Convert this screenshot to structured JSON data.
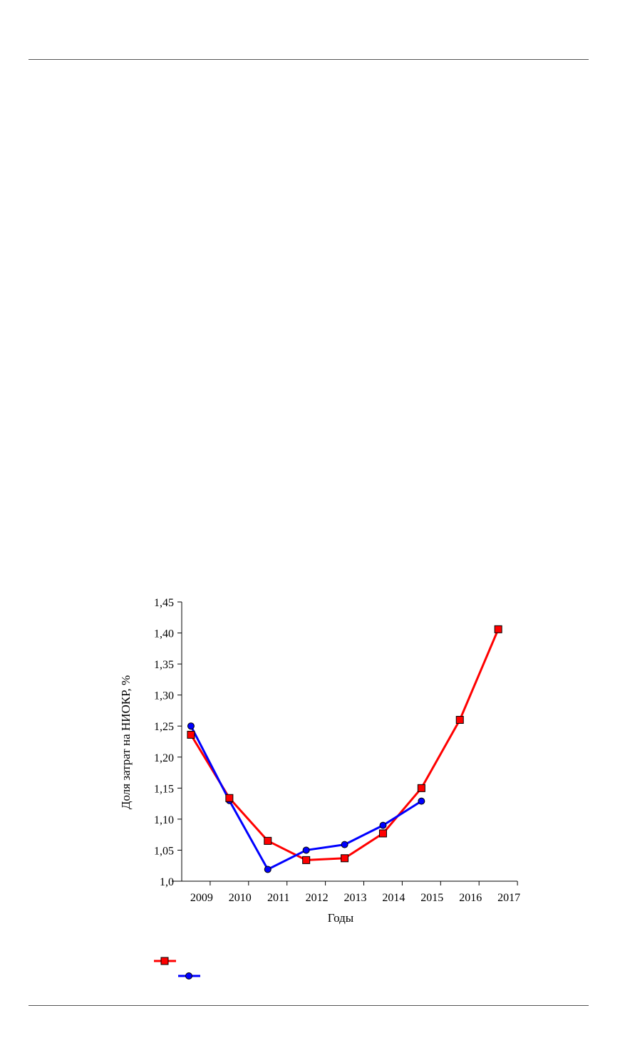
{
  "chart_data": {
    "type": "line",
    "xlabel": "Годы",
    "ylabel": "Доля затрат на НИОКР, %",
    "x_tick_labels": [
      "2009",
      "2010",
      "2011",
      "2012",
      "2013",
      "2014",
      "2015",
      "2016",
      "2017"
    ],
    "y_tick_labels": [
      "1,0",
      "1,05",
      "1,10",
      "1,15",
      "1,20",
      "1,25",
      "1,30",
      "1,35",
      "1,40",
      "1,45"
    ],
    "ylim": [
      1.0,
      1.45
    ],
    "grid": false,
    "legend_position": "bottom-left",
    "series": [
      {
        "color": "#ff0000",
        "marker": "square",
        "values": [
          1.236,
          1.134,
          1.065,
          1.034,
          1.037,
          1.077,
          1.15,
          1.26,
          1.406
        ]
      },
      {
        "color": "#0000ff",
        "marker": "circle",
        "values": [
          1.25,
          1.13,
          1.019,
          1.05,
          1.059,
          1.09,
          1.129
        ]
      }
    ]
  }
}
